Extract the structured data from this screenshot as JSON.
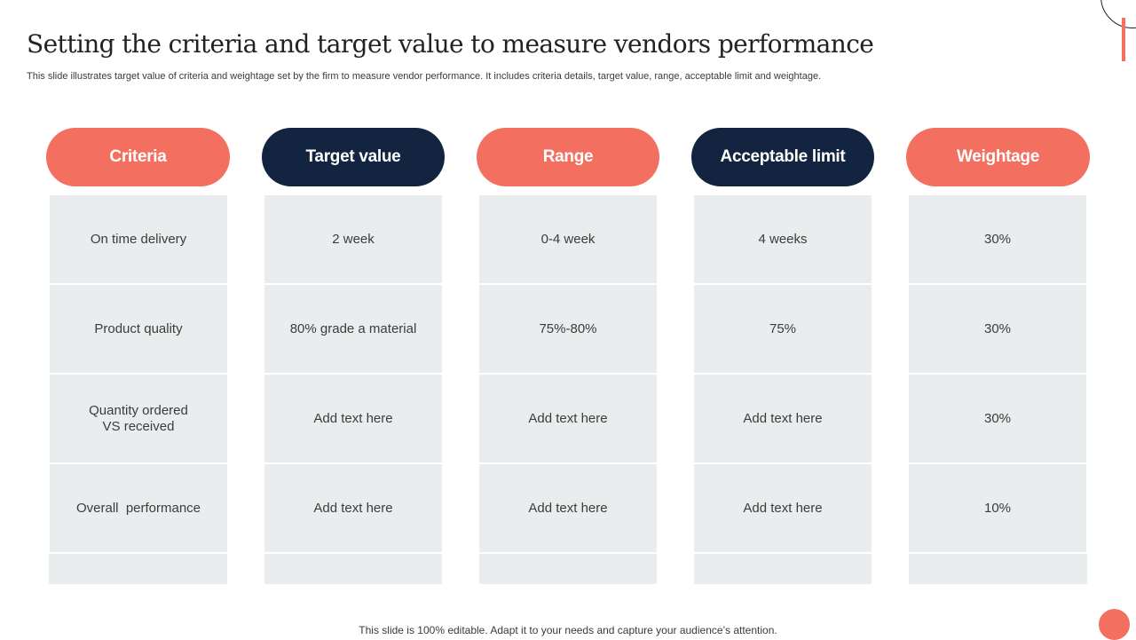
{
  "slide": {
    "title": "Setting the criteria and target value to measure vendors performance",
    "subtitle": "This slide illustrates target value of criteria and weightage set by the firm to measure vendor performance. It includes criteria details, target value, range, acceptable limit and weightage.",
    "footer": "This slide is 100% editable. Adapt it to your needs and capture your audience’s attention."
  },
  "table": {
    "headers": [
      "Criteria",
      "Target value",
      "Range",
      "Acceptable limit",
      "Weightage"
    ],
    "header_colors": [
      "#f36f5f",
      "#132440",
      "#f36f5f",
      "#132440",
      "#f36f5f"
    ],
    "rows": [
      [
        "On time delivery",
        "2 week",
        "0-4 week",
        "4 weeks",
        "30%"
      ],
      [
        "Product quality",
        "80% grade a material",
        "75%-80%",
        "75%",
        "30%"
      ],
      [
        "Quantity ordered\nVS received",
        "Add text here",
        "Add text here",
        "Add text here",
        "30%"
      ],
      [
        "Overall  performance",
        "Add text here",
        "Add text here",
        "Add text here",
        "10%"
      ],
      [
        "",
        "",
        "",
        "",
        ""
      ]
    ]
  },
  "colors": {
    "accent": "#f36f5f",
    "navy": "#132440",
    "cell_background": "#e9edee"
  }
}
